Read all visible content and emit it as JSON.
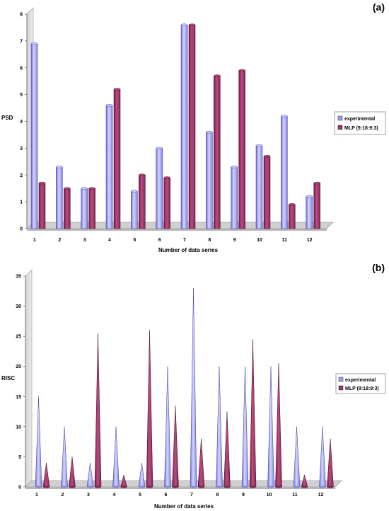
{
  "chart_data": [
    {
      "type": "bar",
      "panel_label": "(a)",
      "ylabel": "PSD",
      "xlabel": "Number of data series",
      "ylim": [
        0,
        8
      ],
      "yticks": [
        "0",
        "1",
        "2",
        "3",
        "4",
        "5",
        "6",
        "7",
        "8"
      ],
      "categories": [
        "1",
        "2",
        "3",
        "4",
        "5",
        "6",
        "7",
        "8",
        "9",
        "10",
        "11",
        "12"
      ],
      "legend_position": "right",
      "series": [
        {
          "name": "experimental",
          "color": "#9999ff",
          "values": [
            6.9,
            2.3,
            1.5,
            4.6,
            1.4,
            3.0,
            7.6,
            3.6,
            2.3,
            3.1,
            4.2,
            1.2
          ]
        },
        {
          "name": "MLP (9:18:9:3)",
          "color": "#993366",
          "values": [
            1.7,
            1.5,
            1.5,
            5.2,
            2.0,
            1.9,
            7.6,
            5.7,
            5.9,
            2.7,
            0.9,
            1.7
          ]
        }
      ]
    },
    {
      "type": "bar",
      "mark_shape": "cone",
      "panel_label": "(b)",
      "ylabel": "RISC",
      "xlabel": "Number of data series",
      "ylim": [
        0,
        35
      ],
      "yticks": [
        "0",
        "5",
        "10",
        "15",
        "20",
        "25",
        "30",
        "35"
      ],
      "categories": [
        "1",
        "2",
        "3",
        "4",
        "5",
        "6",
        "7",
        "8",
        "9",
        "10",
        "11",
        "12"
      ],
      "legend_position": "right",
      "series": [
        {
          "name": "experimental",
          "color": "#9999ff",
          "values": [
            15,
            10,
            4,
            10,
            4,
            20,
            33,
            20,
            20,
            20,
            10,
            10
          ]
        },
        {
          "name": "MLP (9:18:9:3)",
          "color": "#993366",
          "values": [
            4,
            5,
            25.5,
            2,
            26,
            13.5,
            8,
            12.5,
            24.5,
            20.5,
            2,
            8
          ]
        }
      ]
    }
  ]
}
